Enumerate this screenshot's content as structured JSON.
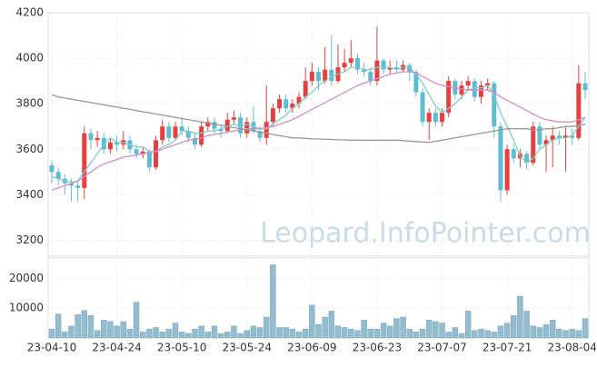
{
  "watermark": "Leopard.InfoPointer.com",
  "chart_data": [
    {
      "type": "candlestick",
      "categories": [
        "23-04-10",
        null,
        null,
        null,
        null,
        null,
        null,
        null,
        null,
        null,
        "23-04-24",
        null,
        null,
        null,
        null,
        null,
        null,
        null,
        null,
        null,
        "23-05-10",
        null,
        null,
        null,
        null,
        null,
        null,
        null,
        null,
        null,
        "23-05-24",
        null,
        null,
        null,
        null,
        null,
        null,
        null,
        null,
        null,
        "23-06-09",
        null,
        null,
        null,
        null,
        null,
        null,
        null,
        null,
        null,
        "23-06-23",
        null,
        null,
        null,
        null,
        null,
        null,
        null,
        null,
        null,
        "23-07-07",
        null,
        null,
        null,
        null,
        null,
        null,
        null,
        null,
        null,
        "23-07-21",
        null,
        null,
        null,
        null,
        null,
        null,
        null,
        null,
        null,
        "23-08-04",
        null,
        null
      ],
      "open": [
        3530,
        3500,
        3470,
        3450,
        3440,
        3430,
        3670,
        3640,
        3650,
        3600,
        3630,
        3620,
        3640,
        3600,
        3580,
        3590,
        3520,
        3640,
        3700,
        3650,
        3700,
        3680,
        3650,
        3620,
        3700,
        3720,
        3690,
        3680,
        3730,
        3740,
        3670,
        3720,
        3680,
        3650,
        3720,
        3780,
        3820,
        3780,
        3800,
        3830,
        3900,
        3940,
        3900,
        3950,
        3900,
        3960,
        3980,
        4000,
        3950,
        3940,
        3900,
        3990,
        3950,
        3960,
        3950,
        3970,
        3940,
        3850,
        3720,
        3760,
        3720,
        3760,
        3900,
        3840,
        3880,
        3900,
        3830,
        3880,
        3890,
        3700,
        3420,
        3600,
        3560,
        3580,
        3540,
        3700,
        3620,
        3640,
        3660,
        3650,
        3660,
        3650,
        3890
      ],
      "high": [
        3550,
        3520,
        3490,
        3470,
        3460,
        3700,
        3690,
        3680,
        3670,
        3650,
        3660,
        3680,
        3660,
        3620,
        3610,
        3600,
        3660,
        3730,
        3720,
        3720,
        3740,
        3700,
        3670,
        3720,
        3740,
        3740,
        3710,
        3760,
        3770,
        3760,
        3740,
        3790,
        3700,
        3880,
        3800,
        3840,
        3840,
        3820,
        3850,
        3960,
        3980,
        3960,
        4050,
        4100,
        4060,
        4040,
        4080,
        4020,
        3980,
        3960,
        4140,
        4000,
        3990,
        3990,
        3990,
        3980,
        3950,
        3870,
        3780,
        3780,
        3780,
        3920,
        3910,
        3900,
        3920,
        3910,
        3900,
        3910,
        3900,
        3720,
        3620,
        3620,
        3600,
        3590,
        3720,
        3720,
        3660,
        3700,
        3680,
        3700,
        3690,
        3970,
        3940
      ],
      "low": [
        3450,
        3440,
        3400,
        3370,
        3370,
        3380,
        3600,
        3610,
        3580,
        3580,
        3590,
        3600,
        3580,
        3560,
        3560,
        3500,
        3510,
        3620,
        3630,
        3640,
        3660,
        3630,
        3600,
        3610,
        3680,
        3670,
        3650,
        3670,
        3710,
        3650,
        3650,
        3670,
        3630,
        3620,
        3700,
        3760,
        3760,
        3760,
        3780,
        3820,
        3880,
        3860,
        3890,
        3880,
        3890,
        3940,
        3960,
        3930,
        3920,
        3880,
        3880,
        3930,
        3930,
        3930,
        3940,
        3900,
        3830,
        3700,
        3640,
        3700,
        3700,
        3740,
        3820,
        3820,
        3860,
        3810,
        3800,
        3860,
        3650,
        3370,
        3400,
        3540,
        3520,
        3510,
        3530,
        3600,
        3500,
        3520,
        3620,
        3500,
        3620,
        3640,
        3820
      ],
      "close": [
        3500,
        3470,
        3450,
        3440,
        3430,
        3670,
        3640,
        3650,
        3600,
        3630,
        3620,
        3640,
        3600,
        3580,
        3590,
        3520,
        3640,
        3700,
        3650,
        3700,
        3680,
        3650,
        3620,
        3700,
        3720,
        3690,
        3680,
        3730,
        3740,
        3670,
        3720,
        3680,
        3650,
        3720,
        3780,
        3820,
        3780,
        3800,
        3830,
        3900,
        3940,
        3900,
        3950,
        3900,
        3960,
        3980,
        4000,
        3950,
        3940,
        3900,
        3990,
        3950,
        3960,
        3950,
        3970,
        3940,
        3850,
        3720,
        3760,
        3720,
        3760,
        3900,
        3840,
        3880,
        3900,
        3830,
        3880,
        3890,
        3700,
        3420,
        3600,
        3560,
        3580,
        3540,
        3700,
        3620,
        3640,
        3660,
        3650,
        3660,
        3650,
        3890,
        3860
      ],
      "up_color": "#e53f3f",
      "down_color": "#5fbcd0",
      "series": [
        {
          "color": "#7dcfc4",
          "values": [
            3480,
            3470,
            3460,
            3455,
            3460,
            3500,
            3540,
            3580,
            3620,
            3650,
            3630,
            3630,
            3620,
            3610,
            3610,
            3590,
            3590,
            3610,
            3620,
            3640,
            3680,
            3680,
            3670,
            3670,
            3680,
            3680,
            3690,
            3700,
            3710,
            3700,
            3710,
            3700,
            3690,
            3690,
            3710,
            3730,
            3750,
            3780,
            3800,
            3830,
            3850,
            3880,
            3900,
            3920,
            3930,
            3940,
            3960,
            3960,
            3950,
            3950,
            3960,
            3960,
            3960,
            3950,
            3960,
            3960,
            3930,
            3890,
            3840,
            3790,
            3760,
            3780,
            3800,
            3830,
            3860,
            3870,
            3870,
            3880,
            3840,
            3760,
            3700,
            3640,
            3570,
            3540,
            3560,
            3600,
            3620,
            3640,
            3650,
            3650,
            3660,
            3700,
            3740
          ]
        },
        {
          "color": "#d38ccb",
          "values": [
            3420,
            3430,
            3440,
            3450,
            3460,
            3480,
            3500,
            3520,
            3535,
            3545,
            3555,
            3565,
            3570,
            3575,
            3580,
            3585,
            3590,
            3600,
            3610,
            3620,
            3630,
            3640,
            3645,
            3650,
            3660,
            3665,
            3670,
            3675,
            3680,
            3685,
            3690,
            3690,
            3690,
            3695,
            3700,
            3710,
            3720,
            3730,
            3745,
            3760,
            3775,
            3790,
            3805,
            3820,
            3835,
            3850,
            3865,
            3880,
            3890,
            3900,
            3910,
            3920,
            3930,
            3935,
            3940,
            3940,
            3935,
            3920,
            3905,
            3890,
            3880,
            3875,
            3870,
            3865,
            3860,
            3860,
            3860,
            3860,
            3850,
            3830,
            3815,
            3800,
            3785,
            3770,
            3755,
            3740,
            3730,
            3725,
            3720,
            3720,
            3720,
            3730,
            3740
          ]
        },
        {
          "color": "#9a9a9a",
          "values": [
            3840,
            3830,
            3825,
            3820,
            3815,
            3810,
            3805,
            3800,
            3795,
            3790,
            3785,
            3780,
            3775,
            3770,
            3765,
            3760,
            3755,
            3750,
            3745,
            3740,
            3735,
            3730,
            3725,
            3720,
            3715,
            3710,
            3705,
            3700,
            3695,
            3690,
            3685,
            3680,
            3675,
            3670,
            3665,
            3660,
            3655,
            3650,
            3650,
            3648,
            3646,
            3645,
            3644,
            3643,
            3642,
            3641,
            3640,
            3640,
            3640,
            3640,
            3640,
            3640,
            3640,
            3640,
            3638,
            3636,
            3634,
            3632,
            3630,
            3635,
            3640,
            3645,
            3650,
            3655,
            3660,
            3665,
            3670,
            3675,
            3680,
            3685,
            3690,
            3690,
            3690,
            3690,
            3685,
            3685,
            3690,
            3690,
            3695,
            3700,
            3700,
            3705,
            3710
          ]
        }
      ],
      "ylim": [
        3130,
        4200
      ],
      "yticks": [
        3200,
        3400,
        3600,
        3800,
        4000,
        4200
      ],
      "grid": true
    },
    {
      "type": "bar",
      "values": [
        3000,
        8000,
        2000,
        4000,
        7800,
        9200,
        7500,
        2500,
        6000,
        5500,
        4000,
        5500,
        3000,
        12000,
        2000,
        3000,
        3500,
        2000,
        3000,
        5000,
        2000,
        1500,
        3000,
        4000,
        2000,
        4000,
        1500,
        2000,
        4000,
        1500,
        2500,
        4000,
        3500,
        7000,
        24500,
        3500,
        3500,
        3000,
        2000,
        3000,
        11000,
        4500,
        7000,
        9000,
        4000,
        3500,
        3000,
        2500,
        6000,
        3000,
        3000,
        5000,
        4000,
        6500,
        7000,
        3000,
        2000,
        3000,
        6000,
        5500,
        5000,
        2000,
        3500,
        1500,
        9000,
        2500,
        3000,
        2500,
        2000,
        4000,
        5000,
        7500,
        14000,
        9000,
        4000,
        3500,
        4500,
        6000,
        3000,
        2500,
        3000,
        2500,
        6500
      ],
      "color": "#93bccf",
      "ylim": [
        0,
        26800
      ],
      "yticks": [
        10000,
        20000
      ],
      "grid": true
    }
  ]
}
